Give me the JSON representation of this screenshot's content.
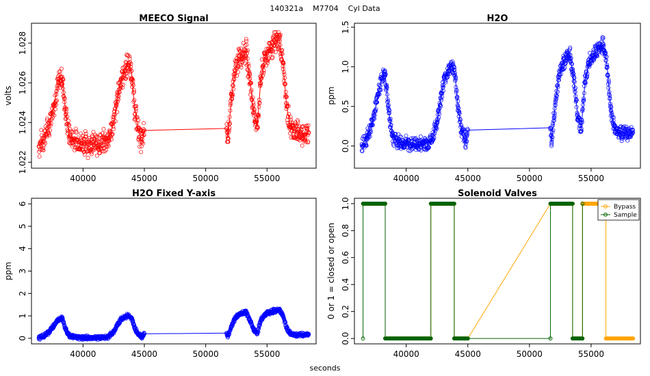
{
  "figure": {
    "title": "140321a    M7704    Cyl Data",
    "xlabel": "seconds"
  },
  "chart_data": [
    {
      "id": "meeco",
      "type": "scatter",
      "title": "MEECO Signal",
      "ylabel": "volts",
      "xlim": [
        35800,
        59000
      ],
      "ylim": [
        1.0217,
        1.029
      ],
      "x_ticks": [
        40000,
        45000,
        50000,
        55000
      ],
      "x_tick_labels": [
        "40000",
        "45000",
        "50000",
        "55000"
      ],
      "y_ticks": [
        1.022,
        1.024,
        1.026,
        1.028
      ],
      "y_tick_labels": [
        "1.022",
        "1.024",
        "1.026",
        "1.028"
      ],
      "color": "#ff0000",
      "series": [
        {
          "name": "MEECO Signal",
          "x": [
            36400,
            36800,
            37200,
            37600,
            38000,
            38300,
            38600,
            38900,
            39300,
            39700,
            40100,
            40500,
            40900,
            41300,
            41700,
            42100,
            42500,
            42800,
            43100,
            43400,
            43700,
            43950,
            44200,
            44500,
            44800,
            45000,
            51700,
            51800,
            52100,
            52400,
            52700,
            53000,
            53300,
            53600,
            53900,
            54200,
            54500,
            54800,
            55100,
            55400,
            55700,
            56000,
            56300,
            56600,
            56900,
            57200,
            57500,
            57800,
            58100,
            58400
          ],
          "y": [
            1.0228,
            1.0232,
            1.0238,
            1.0248,
            1.026,
            1.0263,
            1.0244,
            1.0233,
            1.0231,
            1.023,
            1.023,
            1.0229,
            1.0229,
            1.0229,
            1.023,
            1.0232,
            1.024,
            1.0252,
            1.0262,
            1.0266,
            1.027,
            1.0266,
            1.0248,
            1.0236,
            1.023,
            1.0236,
            1.0237,
            1.0232,
            1.0252,
            1.0266,
            1.0272,
            1.0275,
            1.0276,
            1.0262,
            1.0245,
            1.0238,
            1.0262,
            1.0272,
            1.0276,
            1.0278,
            1.028,
            1.0282,
            1.027,
            1.0248,
            1.0238,
            1.0236,
            1.0235,
            1.0234,
            1.0234,
            1.0235
          ]
        }
      ]
    },
    {
      "id": "h2o",
      "type": "scatter",
      "title": "H2O",
      "ylabel": "ppm",
      "xlim": [
        35800,
        59000
      ],
      "ylim": [
        -0.28,
        1.55
      ],
      "x_ticks": [
        40000,
        45000,
        50000,
        55000
      ],
      "x_tick_labels": [
        "40000",
        "45000",
        "50000",
        "55000"
      ],
      "y_ticks": [
        0.0,
        0.5,
        1.0,
        1.5
      ],
      "y_tick_labels": [
        "0.0",
        "0.5",
        "1.0",
        "1.5"
      ],
      "color": "#0000ff",
      "series": [
        {
          "name": "H2O",
          "x": [
            36400,
            36800,
            37200,
            37600,
            38000,
            38300,
            38600,
            38900,
            39300,
            39700,
            40100,
            40500,
            40900,
            41300,
            41700,
            42100,
            42500,
            42800,
            43100,
            43400,
            43700,
            43950,
            44200,
            44500,
            44800,
            45000,
            51700,
            51800,
            52100,
            52400,
            52700,
            53000,
            53300,
            53600,
            53900,
            54200,
            54500,
            54800,
            55100,
            55400,
            55700,
            56000,
            56300,
            56600,
            56900,
            57200,
            57500,
            57800,
            58100,
            58400
          ],
          "y": [
            0.02,
            0.1,
            0.26,
            0.55,
            0.85,
            0.9,
            0.42,
            0.12,
            0.06,
            0.04,
            0.03,
            0.02,
            0.02,
            0.03,
            0.04,
            0.08,
            0.3,
            0.6,
            0.85,
            0.95,
            1.02,
            0.92,
            0.5,
            0.18,
            0.05,
            0.2,
            0.23,
            0.05,
            0.55,
            0.9,
            1.05,
            1.12,
            1.15,
            0.82,
            0.4,
            0.22,
            0.8,
            1.05,
            1.15,
            1.2,
            1.24,
            1.28,
            1.0,
            0.45,
            0.22,
            0.18,
            0.16,
            0.15,
            0.15,
            0.17
          ]
        }
      ]
    },
    {
      "id": "h2o_fixed",
      "type": "scatter",
      "title": "H2O Fixed Y-axis",
      "ylabel": "ppm",
      "xlim": [
        35800,
        59000
      ],
      "ylim": [
        -0.25,
        6.25
      ],
      "x_ticks": [
        40000,
        45000,
        50000,
        55000
      ],
      "x_tick_labels": [
        "40000",
        "45000",
        "50000",
        "55000"
      ],
      "y_ticks": [
        0,
        1,
        2,
        3,
        4,
        5,
        6
      ],
      "y_tick_labels": [
        "0",
        "1",
        "2",
        "3",
        "4",
        "5",
        "6"
      ],
      "color": "#0000ff",
      "series": [
        {
          "name": "H2O",
          "x": [
            36400,
            36800,
            37200,
            37600,
            38000,
            38300,
            38600,
            38900,
            39300,
            39700,
            40100,
            40500,
            40900,
            41300,
            41700,
            42100,
            42500,
            42800,
            43100,
            43400,
            43700,
            43950,
            44200,
            44500,
            44800,
            45000,
            51700,
            51800,
            52100,
            52400,
            52700,
            53000,
            53300,
            53600,
            53900,
            54200,
            54500,
            54800,
            55100,
            55400,
            55700,
            56000,
            56300,
            56600,
            56900,
            57200,
            57500,
            57800,
            58100,
            58400
          ],
          "y": [
            0.02,
            0.1,
            0.26,
            0.55,
            0.85,
            0.9,
            0.42,
            0.12,
            0.06,
            0.04,
            0.03,
            0.02,
            0.02,
            0.03,
            0.04,
            0.08,
            0.3,
            0.6,
            0.85,
            0.95,
            1.02,
            0.92,
            0.5,
            0.18,
            0.05,
            0.2,
            0.23,
            0.05,
            0.55,
            0.9,
            1.05,
            1.12,
            1.15,
            0.82,
            0.4,
            0.22,
            0.8,
            1.05,
            1.15,
            1.2,
            1.24,
            1.28,
            1.0,
            0.45,
            0.22,
            0.18,
            0.16,
            0.15,
            0.15,
            0.17
          ]
        }
      ]
    },
    {
      "id": "valves",
      "type": "line",
      "title": "Solenoid Valves",
      "ylabel": "0 or 1 = closed or open",
      "xlim": [
        35800,
        59000
      ],
      "ylim": [
        -0.04,
        1.04
      ],
      "x_ticks": [
        40000,
        45000,
        50000,
        55000
      ],
      "x_tick_labels": [
        "40000",
        "45000",
        "50000",
        "55000"
      ],
      "y_ticks": [
        0.0,
        0.2,
        0.4,
        0.6,
        0.8,
        1.0
      ],
      "y_tick_labels": [
        "0.0",
        "0.2",
        "0.4",
        "0.6",
        "0.8",
        "1.0"
      ],
      "legend": {
        "position": "top-right",
        "entries": [
          "Bypass",
          "Sample"
        ]
      },
      "series": [
        {
          "name": "Bypass",
          "color": "#ffa500",
          "x": [
            36500,
            38300,
            38300,
            42000,
            42000,
            43900,
            43900,
            45000,
            51700,
            53500,
            53500,
            54300,
            54300,
            56200,
            56200,
            58400
          ],
          "y": [
            1,
            1,
            0,
            0,
            1,
            1,
            0,
            0,
            1,
            1,
            0,
            0,
            1,
            1,
            0,
            0
          ]
        },
        {
          "name": "Sample",
          "color": "#006400",
          "x": [
            36500,
            36500,
            38300,
            38300,
            42000,
            42000,
            43900,
            43900,
            45000,
            51700,
            51700,
            53500,
            53500,
            54300,
            54300
          ],
          "y": [
            0,
            1,
            1,
            0,
            0,
            1,
            1,
            0,
            0,
            0,
            1,
            1,
            0,
            0,
            1
          ]
        }
      ]
    }
  ]
}
